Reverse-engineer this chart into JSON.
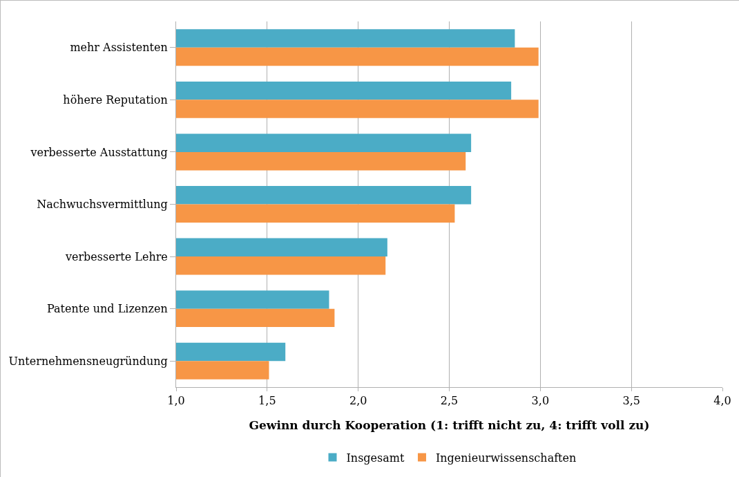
{
  "chart_data": {
    "type": "bar",
    "orientation": "horizontal",
    "xlabel": "Gewinn durch Kooperation (1: trifft nicht zu, 4: trifft voll zu)",
    "categories": [
      "mehr Assistenten",
      "höhere Reputation",
      "verbesserte Ausstattung",
      "Nachwuchsvermittlung",
      "verbesserte Lehre",
      "Patente und Lizenzen",
      "Unternehmensneugründung"
    ],
    "series": [
      {
        "name": "Insgesamt",
        "color": "#4bacc6",
        "values": [
          2.86,
          2.84,
          2.62,
          2.62,
          2.16,
          1.84,
          1.6
        ]
      },
      {
        "name": "Ingenieurwissenschaften",
        "color": "#f79646",
        "values": [
          2.99,
          2.99,
          2.59,
          2.53,
          2.15,
          1.87,
          1.51
        ]
      }
    ],
    "xlim": [
      1,
      4
    ],
    "xticks": [
      {
        "value": 1,
        "label": "1,0"
      },
      {
        "value": 1.5,
        "label": "1,5"
      },
      {
        "value": 2,
        "label": "2,0"
      },
      {
        "value": 2.5,
        "label": "2,5"
      },
      {
        "value": 3,
        "label": "3,0"
      },
      {
        "value": 3.5,
        "label": "3,5"
      },
      {
        "value": 4,
        "label": "4,0"
      }
    ],
    "grid": "x",
    "legend": "bottom"
  }
}
